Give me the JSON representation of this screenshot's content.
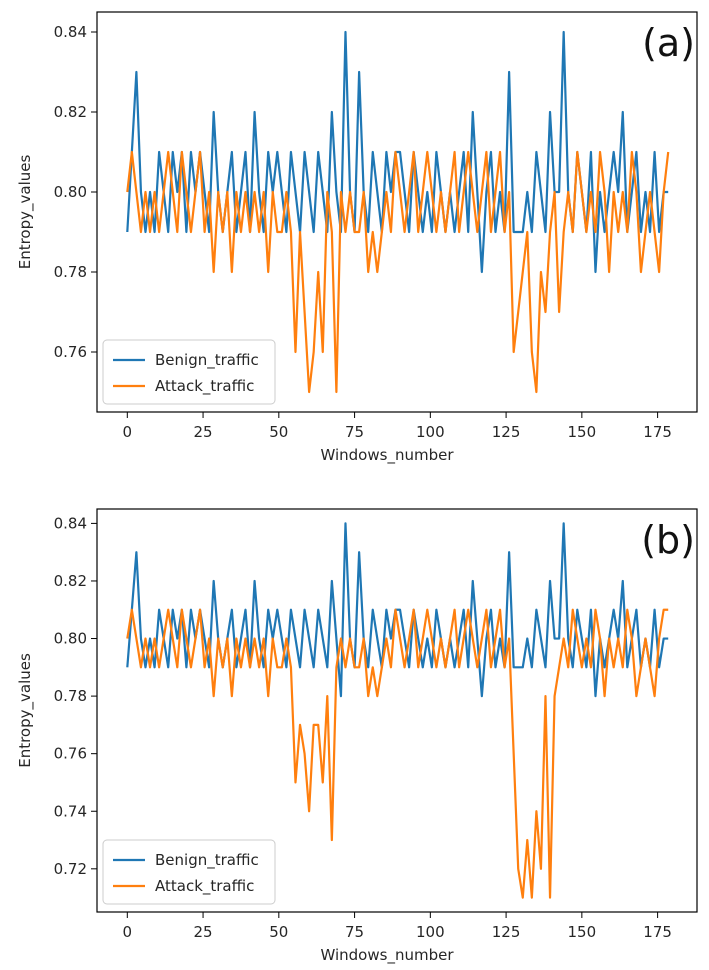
{
  "colors": {
    "benign": "#1f77b4",
    "attack": "#ff7f0e"
  },
  "chart_data": [
    {
      "panel_label": "(a)",
      "type": "line",
      "xlabel": "Windows_number",
      "ylabel": "Entropy_values",
      "xlim": [
        -10,
        188
      ],
      "ylim": [
        0.745,
        0.845
      ],
      "xticks": [
        0,
        25,
        50,
        75,
        100,
        125,
        150,
        175
      ],
      "yticks": [
        0.76,
        0.78,
        0.8,
        0.82,
        0.84
      ],
      "grid": false,
      "legend": "lower-left",
      "x_step": 1.5,
      "series": [
        {
          "name": "Benign_traffic",
          "color": "#1f77b4",
          "values": [
            0.79,
            0.81,
            0.83,
            0.8,
            0.79,
            0.8,
            0.79,
            0.81,
            0.8,
            0.79,
            0.81,
            0.8,
            0.81,
            0.79,
            0.81,
            0.8,
            0.81,
            0.8,
            0.79,
            0.82,
            0.8,
            0.79,
            0.8,
            0.81,
            0.79,
            0.8,
            0.81,
            0.79,
            0.82,
            0.8,
            0.79,
            0.81,
            0.8,
            0.81,
            0.8,
            0.79,
            0.81,
            0.8,
            0.79,
            0.81,
            0.8,
            0.79,
            0.81,
            0.8,
            0.79,
            0.82,
            0.8,
            0.79,
            0.84,
            0.8,
            0.79,
            0.83,
            0.8,
            0.79,
            0.81,
            0.8,
            0.79,
            0.81,
            0.8,
            0.81,
            0.81,
            0.8,
            0.79,
            0.81,
            0.8,
            0.79,
            0.8,
            0.79,
            0.81,
            0.8,
            0.79,
            0.8,
            0.79,
            0.8,
            0.81,
            0.79,
            0.82,
            0.8,
            0.78,
            0.8,
            0.81,
            0.79,
            0.8,
            0.79,
            0.83,
            0.79,
            0.79,
            0.79,
            0.8,
            0.79,
            0.81,
            0.8,
            0.79,
            0.82,
            0.8,
            0.8,
            0.84,
            0.8,
            0.79,
            0.81,
            0.8,
            0.79,
            0.81,
            0.78,
            0.8,
            0.79,
            0.8,
            0.81,
            0.8,
            0.82,
            0.79,
            0.8,
            0.81,
            0.79,
            0.8,
            0.79,
            0.81,
            0.79,
            0.8,
            0.8
          ]
        },
        {
          "name": "Attack_traffic",
          "color": "#ff7f0e",
          "values": [
            0.8,
            0.81,
            0.8,
            0.79,
            0.8,
            0.79,
            0.8,
            0.79,
            0.8,
            0.81,
            0.8,
            0.79,
            0.81,
            0.8,
            0.79,
            0.8,
            0.81,
            0.79,
            0.8,
            0.78,
            0.8,
            0.79,
            0.8,
            0.78,
            0.8,
            0.79,
            0.8,
            0.79,
            0.8,
            0.79,
            0.8,
            0.78,
            0.8,
            0.79,
            0.79,
            0.8,
            0.79,
            0.76,
            0.79,
            0.77,
            0.75,
            0.76,
            0.78,
            0.76,
            0.8,
            0.79,
            0.75,
            0.8,
            0.79,
            0.8,
            0.79,
            0.79,
            0.8,
            0.78,
            0.79,
            0.78,
            0.79,
            0.8,
            0.79,
            0.81,
            0.8,
            0.79,
            0.8,
            0.81,
            0.79,
            0.8,
            0.81,
            0.8,
            0.79,
            0.8,
            0.79,
            0.8,
            0.81,
            0.79,
            0.8,
            0.81,
            0.8,
            0.79,
            0.8,
            0.81,
            0.79,
            0.8,
            0.81,
            0.79,
            0.8,
            0.76,
            0.77,
            0.78,
            0.79,
            0.76,
            0.75,
            0.78,
            0.77,
            0.79,
            0.8,
            0.77,
            0.79,
            0.8,
            0.79,
            0.81,
            0.8,
            0.79,
            0.8,
            0.79,
            0.81,
            0.8,
            0.78,
            0.8,
            0.79,
            0.8,
            0.79,
            0.81,
            0.8,
            0.78,
            0.79,
            0.8,
            0.79,
            0.78,
            0.8,
            0.81
          ]
        }
      ]
    },
    {
      "panel_label": "(b)",
      "type": "line",
      "xlabel": "Windows_number",
      "ylabel": "Entropy_values",
      "xlim": [
        -10,
        188
      ],
      "ylim": [
        0.705,
        0.845
      ],
      "xticks": [
        0,
        25,
        50,
        75,
        100,
        125,
        150,
        175
      ],
      "yticks": [
        0.72,
        0.74,
        0.76,
        0.78,
        0.8,
        0.82,
        0.84
      ],
      "grid": false,
      "legend": "lower-left",
      "x_step": 1.5,
      "series": [
        {
          "name": "Benign_traffic",
          "color": "#1f77b4",
          "values": [
            0.79,
            0.81,
            0.83,
            0.8,
            0.79,
            0.8,
            0.79,
            0.81,
            0.8,
            0.79,
            0.81,
            0.8,
            0.81,
            0.79,
            0.81,
            0.8,
            0.81,
            0.8,
            0.79,
            0.82,
            0.8,
            0.79,
            0.8,
            0.81,
            0.79,
            0.8,
            0.81,
            0.79,
            0.82,
            0.8,
            0.79,
            0.81,
            0.8,
            0.81,
            0.8,
            0.79,
            0.81,
            0.8,
            0.79,
            0.81,
            0.8,
            0.79,
            0.81,
            0.8,
            0.79,
            0.82,
            0.8,
            0.78,
            0.84,
            0.8,
            0.79,
            0.83,
            0.8,
            0.79,
            0.81,
            0.8,
            0.79,
            0.81,
            0.8,
            0.81,
            0.81,
            0.8,
            0.79,
            0.81,
            0.8,
            0.79,
            0.8,
            0.79,
            0.81,
            0.8,
            0.79,
            0.8,
            0.79,
            0.8,
            0.81,
            0.79,
            0.82,
            0.8,
            0.78,
            0.8,
            0.81,
            0.79,
            0.8,
            0.79,
            0.83,
            0.79,
            0.79,
            0.79,
            0.8,
            0.79,
            0.81,
            0.8,
            0.79,
            0.82,
            0.8,
            0.8,
            0.84,
            0.8,
            0.79,
            0.81,
            0.8,
            0.79,
            0.81,
            0.78,
            0.8,
            0.79,
            0.8,
            0.81,
            0.8,
            0.82,
            0.79,
            0.8,
            0.81,
            0.79,
            0.8,
            0.79,
            0.81,
            0.79,
            0.8,
            0.8
          ]
        },
        {
          "name": "Attack_traffic",
          "color": "#ff7f0e",
          "values": [
            0.8,
            0.81,
            0.8,
            0.79,
            0.8,
            0.79,
            0.8,
            0.79,
            0.8,
            0.81,
            0.8,
            0.79,
            0.81,
            0.8,
            0.79,
            0.8,
            0.81,
            0.79,
            0.8,
            0.78,
            0.8,
            0.79,
            0.8,
            0.78,
            0.8,
            0.79,
            0.8,
            0.79,
            0.8,
            0.79,
            0.8,
            0.78,
            0.8,
            0.79,
            0.79,
            0.8,
            0.79,
            0.75,
            0.77,
            0.76,
            0.74,
            0.77,
            0.77,
            0.75,
            0.78,
            0.73,
            0.79,
            0.8,
            0.79,
            0.8,
            0.79,
            0.79,
            0.8,
            0.78,
            0.79,
            0.78,
            0.79,
            0.8,
            0.79,
            0.81,
            0.8,
            0.79,
            0.8,
            0.81,
            0.79,
            0.8,
            0.81,
            0.8,
            0.79,
            0.8,
            0.79,
            0.8,
            0.81,
            0.79,
            0.8,
            0.81,
            0.8,
            0.79,
            0.8,
            0.81,
            0.79,
            0.8,
            0.81,
            0.79,
            0.8,
            0.76,
            0.72,
            0.71,
            0.73,
            0.71,
            0.74,
            0.72,
            0.78,
            0.71,
            0.78,
            0.79,
            0.8,
            0.79,
            0.81,
            0.8,
            0.79,
            0.8,
            0.79,
            0.81,
            0.8,
            0.78,
            0.8,
            0.79,
            0.8,
            0.79,
            0.81,
            0.8,
            0.78,
            0.79,
            0.8,
            0.79,
            0.78,
            0.8,
            0.81,
            0.81
          ]
        }
      ]
    }
  ]
}
